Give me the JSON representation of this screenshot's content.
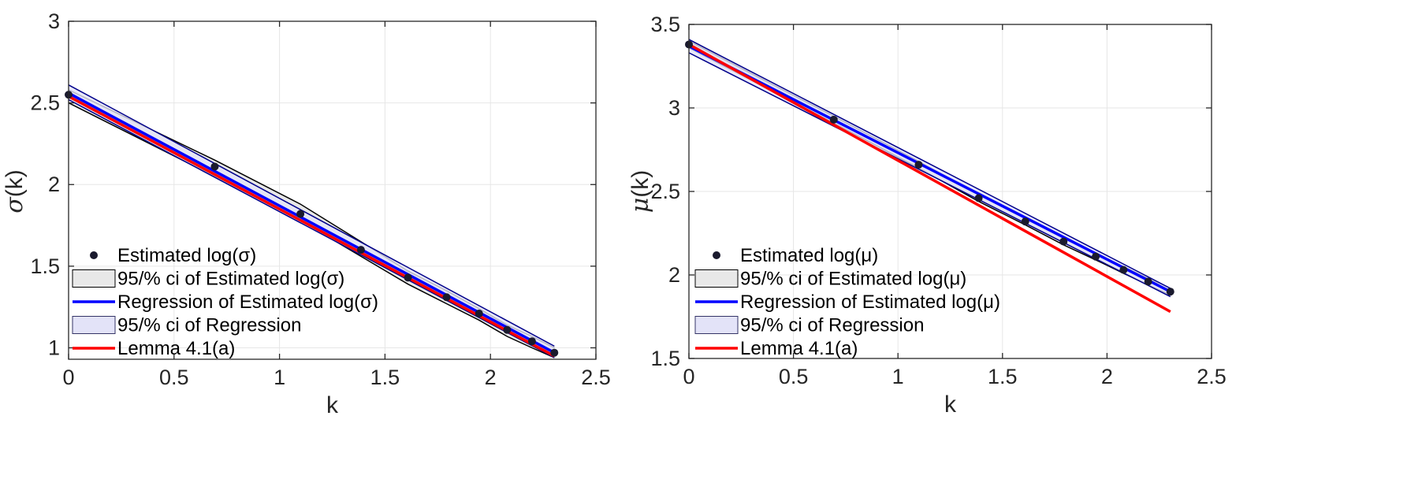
{
  "chart_data": [
    {
      "type": "line",
      "title": "",
      "xlabel": "k",
      "ylabel": "σ(k)",
      "ylabel_symbol": "σ",
      "ylabel_suffix": "(k)",
      "xlim": [
        0,
        2.5
      ],
      "ylim": [
        0.93,
        3.0
      ],
      "xticks": [
        "0",
        "0.5",
        "1",
        "1.5",
        "2",
        "2.5"
      ],
      "yticks": [
        "1",
        "1.5",
        "2",
        "2.5",
        "3"
      ],
      "grid": true,
      "legend_position": "bottom-left",
      "estimated_points": {
        "name": "Estimated log(σ)",
        "x": [
          0,
          0.693,
          1.099,
          1.386,
          1.609,
          1.792,
          1.946,
          2.079,
          2.197,
          2.303
        ],
        "y": [
          2.55,
          2.11,
          1.82,
          1.6,
          1.43,
          1.31,
          1.21,
          1.11,
          1.04,
          0.97
        ]
      },
      "estimated_ci": {
        "name": "95/% ci of Estimated log(σ)",
        "x": [
          0,
          0.693,
          1.099,
          1.386,
          1.609,
          1.792,
          1.946,
          2.079,
          2.197,
          2.303
        ],
        "upper": [
          2.58,
          2.15,
          1.88,
          1.65,
          1.47,
          1.35,
          1.24,
          1.14,
          1.07,
          1.0
        ],
        "lower": [
          2.5,
          2.05,
          1.78,
          1.56,
          1.39,
          1.27,
          1.17,
          1.07,
          1.0,
          0.94
        ]
      },
      "regression": {
        "name": "Regression of Estimated log(σ)",
        "x": [
          0,
          2.303
        ],
        "y": [
          2.56,
          0.97
        ]
      },
      "regression_ci": {
        "name": "95/% ci of Regression",
        "x": [
          0,
          2.303
        ],
        "upper": [
          2.61,
          1.01
        ],
        "lower": [
          2.52,
          0.94
        ]
      },
      "lemma": {
        "name": "Lemma 4.1(a)",
        "x": [
          0,
          2.303
        ],
        "y": [
          2.54,
          0.95
        ]
      },
      "colors": {
        "points": "#1a1a2e",
        "ci_fill": "#e8e8e8",
        "ci_edge": "#000000",
        "regression": "#0000ff",
        "regression_ci_fill": "#e3e3f8",
        "regression_ci_edge": "#00008b",
        "lemma": "#ff0000"
      }
    },
    {
      "type": "line",
      "title": "",
      "xlabel": "k",
      "ylabel": "μ(k)",
      "ylabel_symbol": "μ",
      "ylabel_suffix": "(k)",
      "xlim": [
        0,
        2.5
      ],
      "ylim": [
        1.5,
        3.5
      ],
      "xticks": [
        "0",
        "0.5",
        "1",
        "1.5",
        "2",
        "2.5"
      ],
      "yticks": [
        "1.5",
        "2",
        "2.5",
        "3",
        "3.5"
      ],
      "grid": true,
      "legend_position": "bottom-left",
      "estimated_points": {
        "name": "Estimated log(μ)",
        "x": [
          0,
          0.693,
          1.099,
          1.386,
          1.609,
          1.792,
          1.946,
          2.079,
          2.197,
          2.303
        ],
        "y": [
          3.38,
          2.93,
          2.66,
          2.46,
          2.32,
          2.2,
          2.11,
          2.03,
          1.96,
          1.9
        ]
      },
      "estimated_ci": {
        "name": "95/% ci of Estimated log(μ)",
        "x": [
          0,
          0.693,
          1.099,
          1.386,
          1.609,
          1.792,
          1.946,
          2.079,
          2.197,
          2.303
        ],
        "upper": [
          3.4,
          2.95,
          2.68,
          2.48,
          2.34,
          2.22,
          2.13,
          2.05,
          1.98,
          1.92
        ],
        "lower": [
          3.36,
          2.91,
          2.64,
          2.44,
          2.3,
          2.18,
          2.09,
          2.01,
          1.94,
          1.88
        ]
      },
      "regression": {
        "name": "Regression of Estimated log(μ)",
        "x": [
          0,
          2.303
        ],
        "y": [
          3.37,
          1.9
        ]
      },
      "regression_ci": {
        "name": "95/% ci of Regression",
        "x": [
          0,
          2.303
        ],
        "upper": [
          3.41,
          1.92
        ],
        "lower": [
          3.33,
          1.87
        ]
      },
      "lemma": {
        "name": "Lemma 4.1(a)",
        "x": [
          0,
          2.303
        ],
        "y": [
          3.38,
          1.78
        ]
      },
      "colors": {
        "points": "#1a1a2e",
        "ci_fill": "#e8e8e8",
        "ci_edge": "#000000",
        "regression": "#0000ff",
        "regression_ci_fill": "#e3e3f8",
        "regression_ci_edge": "#00008b",
        "lemma": "#ff0000"
      }
    }
  ]
}
